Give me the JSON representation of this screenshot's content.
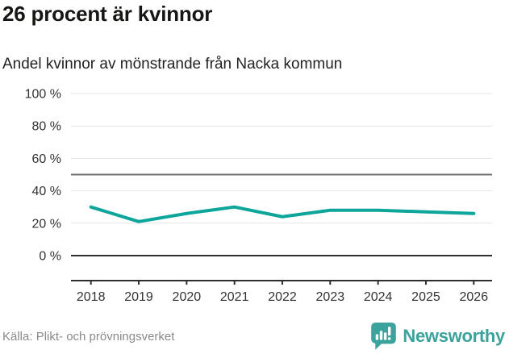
{
  "header": {
    "title": "26 procent är kvinnor",
    "subtitle": "Andel kvinnor av mönstrande från Nacka kommun"
  },
  "chart_data": {
    "type": "line",
    "title": "26 procent är kvinnor",
    "subtitle": "Andel kvinnor av mönstrande från Nacka kommun",
    "x": [
      2018,
      2019,
      2020,
      2021,
      2022,
      2023,
      2024,
      2025,
      2026
    ],
    "series": [
      {
        "name": "Andel kvinnor av mönstrande",
        "color": "#0ea69b",
        "values": [
          30,
          21,
          26,
          30,
          24,
          28,
          28,
          27,
          26
        ]
      }
    ],
    "xlabel": "",
    "ylabel": "",
    "ylim": [
      0,
      100
    ],
    "yticks": [
      0,
      20,
      40,
      60,
      80,
      100
    ],
    "ytick_labels": [
      "0 %",
      "20 %",
      "40 %",
      "60 %",
      "80 %",
      "100 %"
    ],
    "reference_line": 50,
    "grid": "horizontal",
    "legend": "none"
  },
  "footer": {
    "source": "Källa: Plikt- och prövningsverket",
    "brand": "Newsworthy"
  },
  "colors": {
    "line": "#0ea69b",
    "brand_teal": "#3ba39c",
    "grid_light": "#e4e4e4",
    "grid_mid": "#6f6f6f",
    "axis_dark": "#2e2e2e",
    "text_dark": "#333333",
    "source_gray": "#8a8a8a"
  }
}
